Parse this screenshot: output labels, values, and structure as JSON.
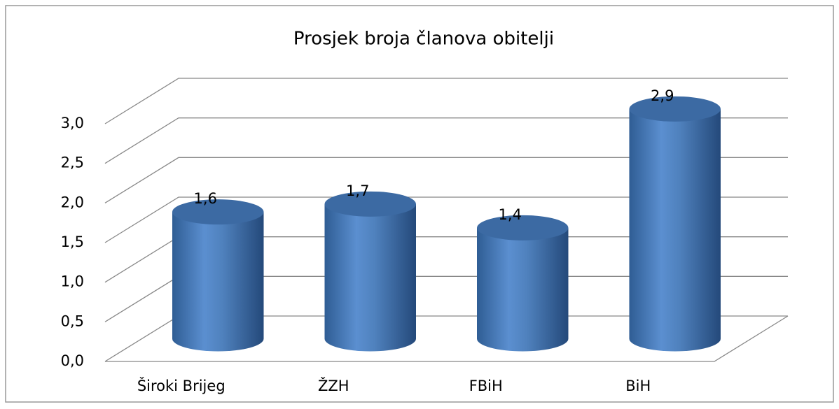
{
  "chart_data": {
    "type": "bar3d",
    "title": "Prosjek broja članova obitelji",
    "categories": [
      "Široki Brijeg",
      "ŽZH",
      "FBiH",
      "BiH"
    ],
    "values": [
      1.6,
      1.7,
      1.4,
      2.9
    ],
    "value_labels": [
      "1,6",
      "1,7",
      "1,4",
      "2,9"
    ],
    "color": "#4f81bd",
    "ylim": [
      0,
      3
    ],
    "yticks": [
      {
        "value": 0,
        "label": "0,0"
      },
      {
        "value": 0.5,
        "label": "0,5"
      },
      {
        "value": 1,
        "label": "1,0"
      },
      {
        "value": 1.5,
        "label": "1,5"
      },
      {
        "value": 2,
        "label": "2,0"
      },
      {
        "value": 2.5,
        "label": "2,5"
      },
      {
        "value": 3,
        "label": "3,0"
      }
    ],
    "grid": true
  }
}
